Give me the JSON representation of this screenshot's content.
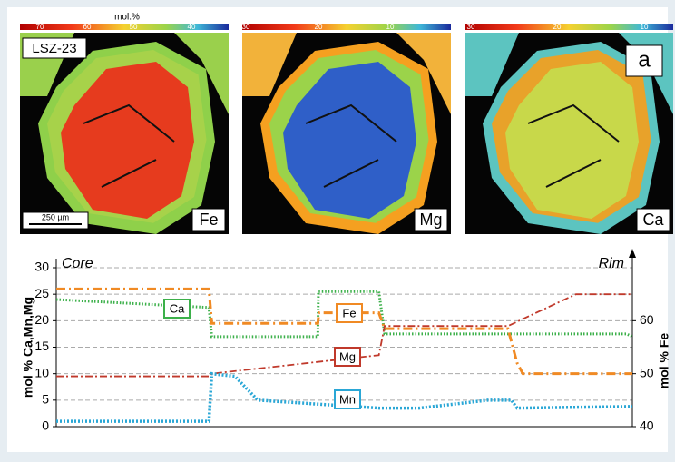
{
  "figure": {
    "sample": "LSZ-23",
    "panel_letter": "a",
    "scale_bar": "250 µm",
    "colorbar_title": "mol.%",
    "panels": [
      {
        "element": "Fe",
        "colorbar_ticks": [
          70,
          60,
          50,
          40
        ]
      },
      {
        "element": "Mg",
        "colorbar_ticks": [
          30,
          20,
          10
        ]
      },
      {
        "element": "Ca",
        "colorbar_ticks": [
          30,
          20,
          10
        ]
      }
    ]
  },
  "chart_data": {
    "type": "line",
    "annotations": [
      "Core",
      "Rim"
    ],
    "ylabel": "mol % Ca,Mn,Mg",
    "y2label": "mol % Fe",
    "xlim": [
      0,
      100
    ],
    "ylim": [
      0,
      30
    ],
    "yticks": [
      0,
      5,
      10,
      15,
      20,
      25,
      30
    ],
    "y2lim": [
      40,
      70
    ],
    "y2ticks": [
      40,
      50,
      60
    ],
    "grid": true,
    "series": [
      {
        "name": "Ca",
        "color": "#3cb04a",
        "x": [
          0,
          26.5,
          27,
          45.4,
          45.5,
          56,
          57,
          99,
          100
        ],
        "values": [
          24,
          22.5,
          17,
          17,
          25.5,
          25.5,
          17.5,
          17.5,
          17
        ]
      },
      {
        "name": "Fe",
        "color": "#f08a24",
        "axis": "y2",
        "x": [
          0,
          26.5,
          27,
          45.4,
          45.6,
          56,
          57,
          78.4,
          80,
          81,
          100
        ],
        "values": [
          66,
          66,
          59.5,
          59.5,
          61.5,
          61.5,
          58.5,
          58.5,
          52,
          50,
          50
        ]
      },
      {
        "name": "Mg",
        "color": "#c0392b",
        "x": [
          0,
          26.5,
          27,
          56,
          57,
          78.4,
          90.2,
          100
        ],
        "values": [
          9.5,
          9.5,
          10,
          13.5,
          19,
          19,
          25,
          25
        ]
      },
      {
        "name": "Mn",
        "color": "#2aa7d6",
        "x": [
          0,
          26.5,
          27,
          31,
          35,
          42,
          56,
          63,
          75,
          79,
          80,
          100
        ],
        "values": [
          1,
          1,
          10,
          9.5,
          5,
          4.5,
          3.5,
          3.5,
          5,
          5,
          3.5,
          3.8
        ]
      }
    ]
  }
}
